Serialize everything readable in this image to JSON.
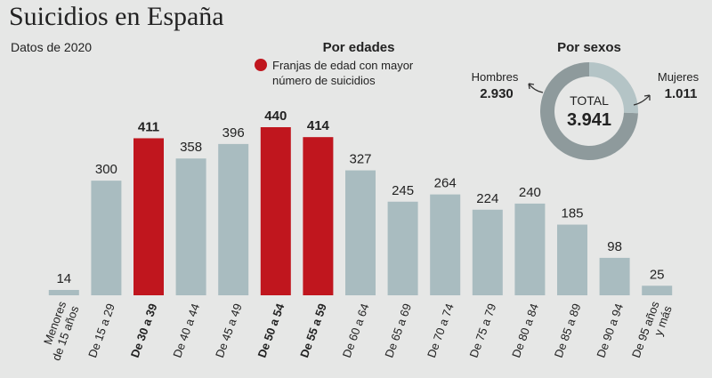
{
  "header": {
    "title": "Suicidios en España",
    "subtitle": "Datos de 2020"
  },
  "chart_data": [
    {
      "type": "bar",
      "title": "Por edades",
      "legend": {
        "label": "Franjas de edad con mayor\nnúmero de suicidios",
        "color": "#c0161e"
      },
      "categories": [
        "Menores\nde 15 años",
        "De 15 a 29",
        "De 30 a 39",
        "De 40 a 44",
        "De 45 a 49",
        "De 50 a 54",
        "De 55 a 59",
        "De 60 a 64",
        "De 65 a 69",
        "De 70 a 74",
        "De 75 a 79",
        "De 80 a 84",
        "De 85 a 89",
        "De 90 a 94",
        "De 95 años\ny más"
      ],
      "values": [
        14,
        300,
        411,
        358,
        396,
        440,
        414,
        327,
        245,
        264,
        224,
        240,
        185,
        98,
        25
      ],
      "colors": [
        "#a9bcc0",
        "#a9bcc0",
        "#c0161e",
        "#a9bcc0",
        "#a9bcc0",
        "#c0161e",
        "#c0161e",
        "#a9bcc0",
        "#a9bcc0",
        "#a9bcc0",
        "#a9bcc0",
        "#a9bcc0",
        "#a9bcc0",
        "#a9bcc0",
        "#a9bcc0"
      ],
      "ylim": [
        0,
        450
      ]
    },
    {
      "type": "pie",
      "title": "Por sexos",
      "categories": [
        "Hombres",
        "Mujeres"
      ],
      "values": [
        2930,
        1011
      ],
      "value_labels": [
        "2.930",
        "1.011"
      ],
      "colors": [
        "#8e9a9c",
        "#b4c4c6"
      ],
      "center_label": "TOTAL",
      "total": {
        "value": 3941,
        "label": "3.941"
      }
    }
  ]
}
